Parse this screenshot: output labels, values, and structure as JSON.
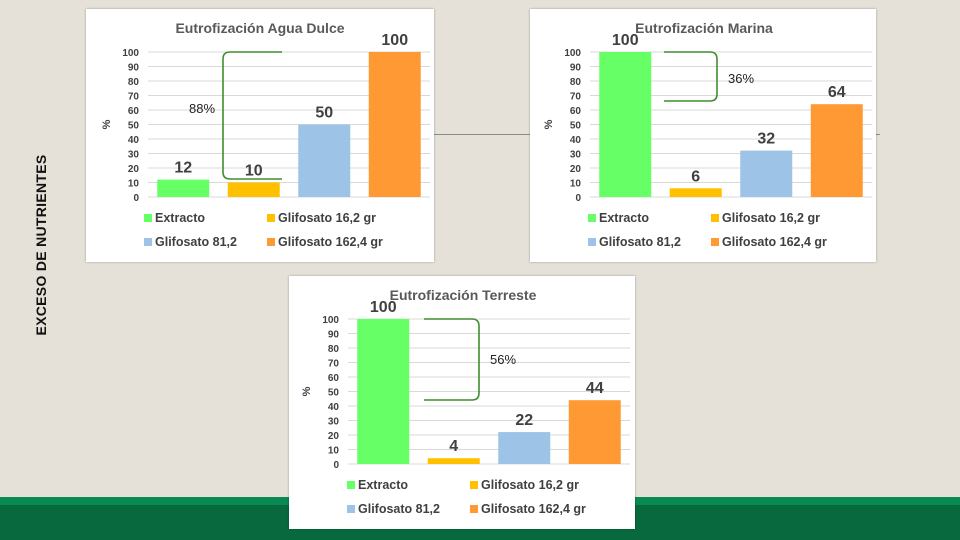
{
  "side_title": "EXCESO DE NUTRIENTES",
  "colors": {
    "extracto": "#66ff66",
    "glifosato_16_2": "#ffc000",
    "glifosato_81_2": "#9dc3e6",
    "glifosato_162_4": "#ff9933",
    "bracket": "#3e8f2f",
    "grid": "#d9d9d9",
    "title": "#595959",
    "label": "#404040"
  },
  "legend": [
    {
      "label": "Extracto",
      "color_key": "extracto"
    },
    {
      "label": "Glifosato 16,2 gr",
      "color_key": "glifosato_16_2"
    },
    {
      "label": "Glifosato 81,2",
      "color_key": "glifosato_81_2"
    },
    {
      "label": "Glifosato 162,4 gr",
      "color_key": "glifosato_162_4"
    }
  ],
  "chart_data": [
    {
      "type": "bar",
      "title": "Eutrofización Agua Dulce",
      "ylabel": "%",
      "ylim": [
        0,
        100
      ],
      "yticks": [
        0,
        10,
        20,
        30,
        40,
        50,
        60,
        70,
        80,
        90,
        100
      ],
      "categories": [
        "Extracto",
        "Glifosato 16,2 gr",
        "Glifosato 81,2",
        "Glifosato 162,4 gr"
      ],
      "values": [
        12,
        10,
        50,
        100
      ],
      "value_labels": [
        "12",
        "10",
        "50",
        "100"
      ],
      "annotation": "88%"
    },
    {
      "type": "bar",
      "title": "Eutrofización Marina",
      "ylabel": "%",
      "ylim": [
        0,
        100
      ],
      "yticks": [
        0,
        10,
        20,
        30,
        40,
        50,
        60,
        70,
        80,
        90,
        100
      ],
      "categories": [
        "Extracto",
        "Glifosato 16,2 gr",
        "Glifosato 81,2",
        "Glifosato 162,4 gr"
      ],
      "values": [
        100,
        6,
        32,
        64
      ],
      "value_labels": [
        "100",
        "6",
        "32",
        "64"
      ],
      "annotation": "36%"
    },
    {
      "type": "bar",
      "title": "Eutrofización Terreste",
      "ylabel": "%",
      "ylim": [
        0,
        100
      ],
      "yticks": [
        0,
        10,
        20,
        30,
        40,
        50,
        60,
        70,
        80,
        90,
        100
      ],
      "categories": [
        "Extracto",
        "Glifosato 16,2 gr",
        "Glifosato 81,2",
        "Glifosato 162,4 gr"
      ],
      "values": [
        100,
        4,
        22,
        44
      ],
      "value_labels": [
        "100",
        "4",
        "22",
        "44"
      ],
      "annotation": "56%"
    }
  ]
}
